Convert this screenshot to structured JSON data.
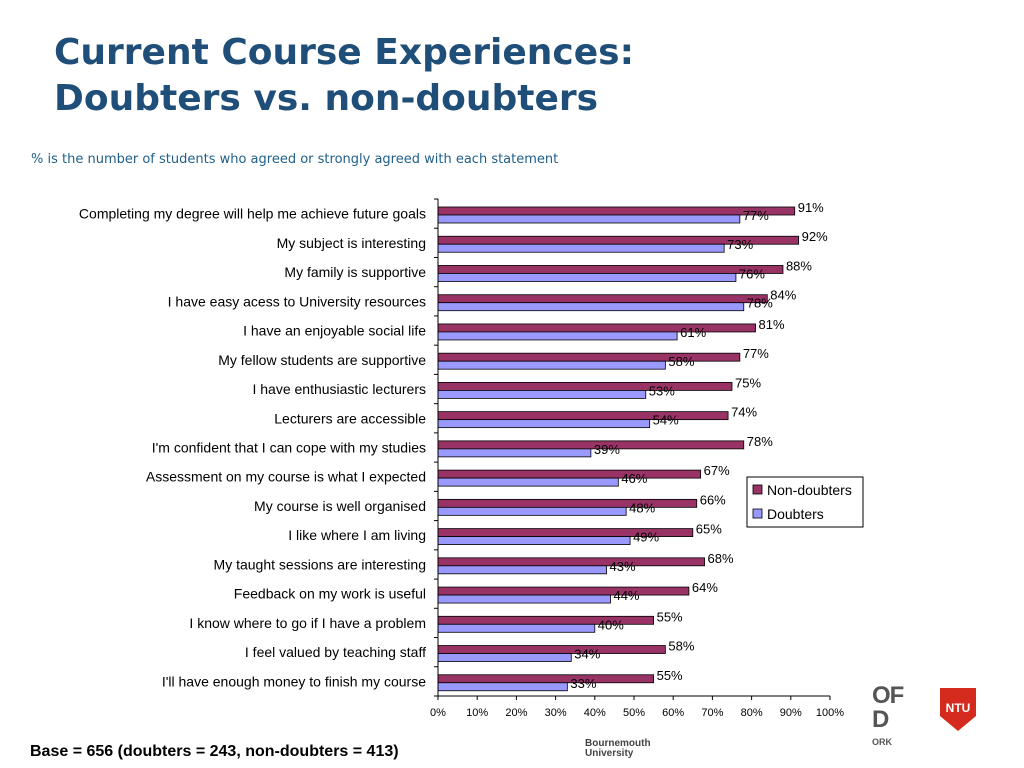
{
  "title_line1": "Current Course Experiences:",
  "title_line2": "Doubters vs. non-doubters",
  "subtitle": "% is the number of students who agreed or strongly agreed with each statement",
  "base_note": "Base = 656 (doubters = 243, non-doubters = 413)",
  "logos": {
    "bournemouth_line1": "Bournemouth",
    "bournemouth_line2": "University",
    "partial_big": "OF\nD",
    "partial_small": "ORK",
    "ntu": "NTU"
  },
  "colors": {
    "non_doubters": "#993366",
    "doubters": "#9999ff",
    "title": "#1f4e79",
    "ntu_red": "#d52b1e"
  },
  "chart_data": {
    "type": "bar",
    "orientation": "horizontal",
    "categories": [
      "Completing my degree will help me achieve future goals",
      "My subject is interesting",
      "My family is supportive",
      "I have easy acess to University resources",
      "I have an enjoyable social life",
      "My fellow students are supportive",
      "I have enthusiastic lecturers",
      "Lecturers are accessible",
      "I'm confident that I can cope with my studies",
      "Assessment on my course is what I expected",
      "My course is well organised",
      "I like where I am living",
      "My taught sessions are interesting",
      "Feedback on my work is useful",
      "I know where to go if I have a problem",
      "I feel valued by teaching staff",
      "I'll have enough money to finish my course"
    ],
    "series": [
      {
        "name": "Non-doubters",
        "values": [
          91,
          92,
          88,
          84,
          81,
          77,
          75,
          74,
          78,
          67,
          66,
          65,
          68,
          64,
          55,
          58,
          55
        ]
      },
      {
        "name": "Doubters",
        "values": [
          77,
          73,
          76,
          78,
          61,
          58,
          53,
          54,
          39,
          46,
          48,
          49,
          43,
          44,
          40,
          34,
          33
        ]
      }
    ],
    "xlim": [
      0,
      100
    ],
    "xticks": [
      0,
      10,
      20,
      30,
      40,
      50,
      60,
      70,
      80,
      90,
      100
    ],
    "xtick_labels": [
      "0%",
      "10%",
      "20%",
      "30%",
      "40%",
      "50%",
      "60%",
      "70%",
      "80%",
      "90%",
      "100%"
    ],
    "value_suffix": "%",
    "legend_position": "right",
    "grid": false
  }
}
